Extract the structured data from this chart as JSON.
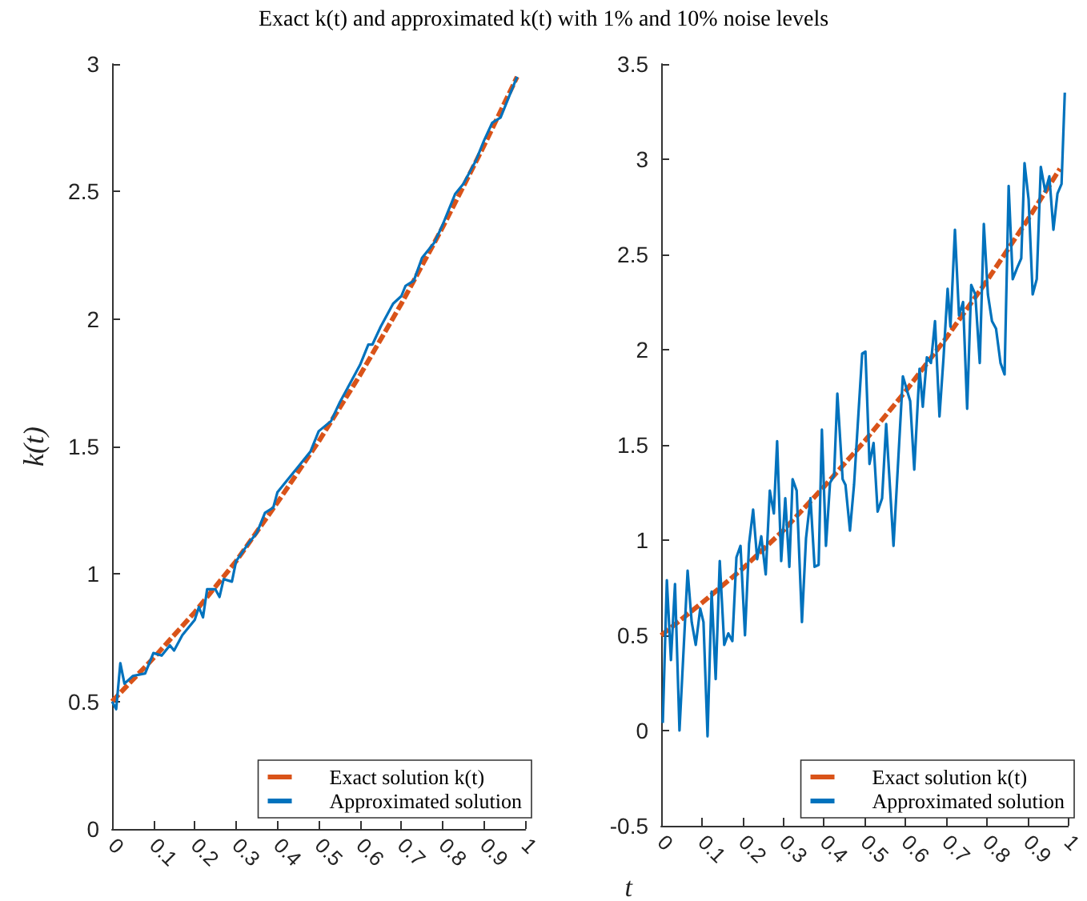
{
  "chart_data": [
    {
      "type": "line",
      "title": "Exact k(t) and approximated k(t) with 1% and 10% noise levels",
      "ylabel": "k(t)",
      "xlim": [
        0,
        1
      ],
      "xticks": [
        0,
        0.1,
        0.2,
        0.3,
        0.4,
        0.5,
        0.6,
        0.7,
        0.8,
        0.9,
        1
      ],
      "ylim": [
        0,
        3
      ],
      "yticks": [
        0,
        0.5,
        1,
        1.5,
        2,
        2.5,
        3
      ],
      "grid": false,
      "legend": "bottom right",
      "marker": "none",
      "series": [
        {
          "name": "Exact solution k(t)",
          "color": "#d95319",
          "line_style": "dashed",
          "x": [
            0,
            0.1,
            0.2,
            0.3,
            0.4,
            0.5,
            0.6,
            0.7,
            0.8,
            0.9,
            0.98
          ],
          "values": [
            0.5,
            0.67,
            0.85,
            1.05,
            1.28,
            1.52,
            1.78,
            2.06,
            2.36,
            2.68,
            2.95
          ]
        },
        {
          "name": "Approximated solution",
          "color": "#0072bd",
          "line_style": "solid",
          "x": [
            0,
            0.01,
            0.02,
            0.03,
            0.05,
            0.08,
            0.1,
            0.12,
            0.14,
            0.15,
            0.17,
            0.2,
            0.21,
            0.22,
            0.23,
            0.25,
            0.26,
            0.27,
            0.29,
            0.3,
            0.33,
            0.35,
            0.37,
            0.39,
            0.4,
            0.42,
            0.45,
            0.48,
            0.5,
            0.53,
            0.55,
            0.57,
            0.6,
            0.62,
            0.63,
            0.65,
            0.68,
            0.7,
            0.71,
            0.73,
            0.75,
            0.78,
            0.8,
            0.83,
            0.85,
            0.88,
            0.9,
            0.92,
            0.94,
            0.96,
            0.98
          ],
          "values": [
            0.5,
            0.47,
            0.65,
            0.57,
            0.6,
            0.61,
            0.69,
            0.68,
            0.72,
            0.7,
            0.76,
            0.82,
            0.87,
            0.83,
            0.94,
            0.94,
            0.91,
            0.98,
            0.97,
            1.05,
            1.12,
            1.16,
            1.24,
            1.26,
            1.32,
            1.36,
            1.42,
            1.48,
            1.56,
            1.6,
            1.67,
            1.73,
            1.82,
            1.9,
            1.9,
            1.97,
            2.06,
            2.09,
            2.13,
            2.15,
            2.24,
            2.3,
            2.37,
            2.49,
            2.53,
            2.62,
            2.7,
            2.77,
            2.79,
            2.87,
            2.95
          ]
        }
      ]
    },
    {
      "type": "line",
      "xlabel": "t",
      "xlim": [
        0,
        1
      ],
      "xticks": [
        0,
        0.1,
        0.2,
        0.3,
        0.4,
        0.5,
        0.6,
        0.7,
        0.8,
        0.9,
        1
      ],
      "ylim": [
        -0.5,
        3.5
      ],
      "yticks": [
        -0.5,
        0,
        0.5,
        1,
        1.5,
        2,
        2.5,
        3,
        3.5
      ],
      "grid": false,
      "legend": "bottom right",
      "marker": "none",
      "series": [
        {
          "name": "Exact solution k(t)",
          "color": "#d95319",
          "line_style": "dashed",
          "x": [
            0,
            0.1,
            0.2,
            0.3,
            0.4,
            0.5,
            0.6,
            0.7,
            0.8,
            0.9,
            0.98
          ],
          "values": [
            0.5,
            0.67,
            0.85,
            1.05,
            1.28,
            1.52,
            1.78,
            2.06,
            2.36,
            2.68,
            2.95
          ]
        },
        {
          "name": "Approximated solution",
          "color": "#0072bd",
          "line_style": "solid",
          "x": [
            0.004,
            0.014,
            0.024,
            0.034,
            0.045,
            0.065,
            0.075,
            0.085,
            0.096,
            0.104,
            0.114,
            0.124,
            0.134,
            0.144,
            0.155,
            0.165,
            0.175,
            0.185,
            0.195,
            0.206,
            0.216,
            0.226,
            0.236,
            0.246,
            0.257,
            0.267,
            0.277,
            0.285,
            0.295,
            0.305,
            0.315,
            0.323,
            0.333,
            0.346,
            0.356,
            0.367,
            0.377,
            0.387,
            0.395,
            0.405,
            0.415,
            0.425,
            0.433,
            0.446,
            0.453,
            0.464,
            0.474,
            0.494,
            0.502,
            0.512,
            0.522,
            0.532,
            0.543,
            0.553,
            0.571,
            0.594,
            0.612,
            0.622,
            0.635,
            0.643,
            0.653,
            0.663,
            0.673,
            0.684,
            0.694,
            0.704,
            0.711,
            0.722,
            0.732,
            0.742,
            0.752,
            0.762,
            0.772,
            0.783,
            0.793,
            0.803,
            0.813,
            0.823,
            0.834,
            0.844,
            0.854,
            0.864,
            0.875,
            0.885,
            0.893,
            0.903,
            0.913,
            0.923,
            0.933,
            0.944,
            0.954,
            0.964,
            0.974,
            0.984,
            0.992
          ],
          "values": [
            0.04,
            0.79,
            0.37,
            0.77,
            0.0,
            0.84,
            0.57,
            0.45,
            0.64,
            0.57,
            -0.03,
            0.73,
            0.27,
            0.89,
            0.45,
            0.51,
            0.47,
            0.91,
            0.97,
            0.5,
            0.98,
            1.16,
            0.9,
            1.02,
            0.82,
            1.26,
            1.14,
            1.52,
            0.89,
            1.22,
            0.86,
            1.32,
            1.26,
            0.57,
            1.01,
            1.22,
            0.86,
            0.87,
            1.58,
            0.97,
            1.3,
            1.34,
            1.77,
            1.32,
            1.29,
            1.05,
            1.29,
            1.98,
            1.99,
            1.4,
            1.51,
            1.15,
            1.22,
            1.61,
            0.97,
            1.86,
            1.73,
            1.37,
            1.9,
            1.7,
            1.96,
            1.93,
            2.15,
            1.65,
            1.96,
            2.32,
            2.12,
            2.63,
            2.18,
            2.25,
            1.69,
            2.34,
            2.29,
            1.93,
            2.66,
            2.29,
            2.15,
            2.11,
            1.93,
            1.87,
            2.86,
            2.37,
            2.43,
            2.48,
            2.98,
            2.79,
            2.29,
            2.37,
            2.96,
            2.83,
            2.91,
            2.63,
            2.82,
            2.87,
            3.35
          ]
        }
      ]
    }
  ]
}
